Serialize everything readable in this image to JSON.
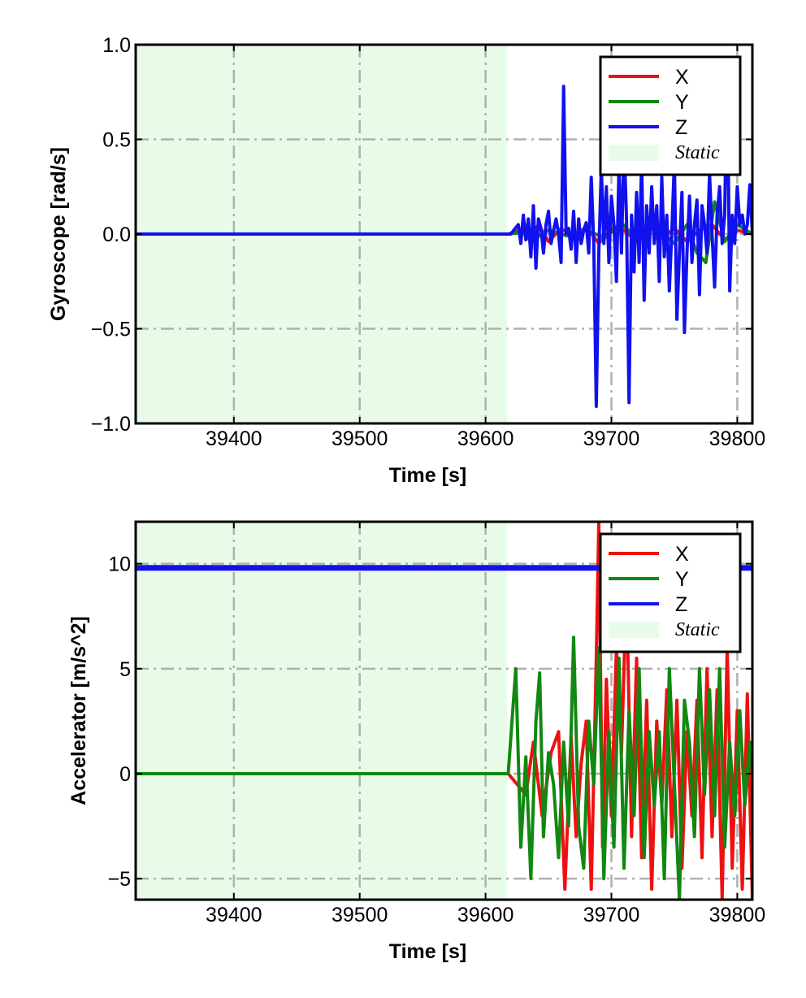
{
  "chart_data": [
    {
      "type": "line",
      "xlabel": "Time [s]",
      "ylabel": "Gyroscope [rad/s]",
      "xlim": [
        39322,
        39812
      ],
      "ylim": [
        -1.0,
        1.0
      ],
      "xticks": [
        39400,
        39500,
        39600,
        39700,
        39800
      ],
      "xtick_labels": [
        "39400",
        "39500",
        "39600",
        "39700",
        "39800"
      ],
      "yticks": [
        -1.0,
        -0.5,
        0.0,
        0.5,
        1.0
      ],
      "ytick_labels": [
        "−1.0",
        "−0.5",
        "0.0",
        "0.5",
        "1.0"
      ],
      "grid": true,
      "legend_position": "top-right",
      "static_region": {
        "label": "Static",
        "x_start": 39322,
        "x_end": 39617,
        "color": "#e8fbe8"
      },
      "series": [
        {
          "name": "X",
          "color": "#ee1111",
          "x": [
            39322,
            39618,
            39628,
            39635,
            39642,
            39650,
            39660,
            39670,
            39680,
            39690,
            39700,
            39710,
            39720,
            39730,
            39740,
            39750,
            39760,
            39770,
            39780,
            39790,
            39800,
            39812
          ],
          "y": [
            0.0,
            0.0,
            0.02,
            -0.03,
            0.05,
            -0.04,
            0.03,
            -0.02,
            0.04,
            -0.05,
            0.03,
            0.02,
            -0.04,
            0.05,
            -0.02,
            0.03,
            -0.04,
            0.02,
            0.05,
            -0.03,
            0.02,
            0.0
          ]
        },
        {
          "name": "Y",
          "color": "#118811",
          "x": [
            39322,
            39618,
            39630,
            39640,
            39650,
            39665,
            39680,
            39695,
            39708,
            39720,
            39735,
            39750,
            39760,
            39768,
            39775,
            39782,
            39790,
            39800,
            39812
          ],
          "y": [
            0.0,
            0.0,
            0.01,
            -0.02,
            0.02,
            -0.01,
            0.02,
            -0.02,
            0.06,
            -0.03,
            0.04,
            -0.05,
            0.05,
            -0.1,
            -0.15,
            0.17,
            -0.04,
            0.05,
            0.0
          ]
        },
        {
          "name": "Z",
          "color": "#1111ee",
          "x": [
            39322,
            39620,
            39626,
            39628,
            39630,
            39632,
            39634,
            39636,
            39638,
            39640,
            39642,
            39644,
            39646,
            39648,
            39650,
            39652,
            39654,
            39656,
            39658,
            39660,
            39662,
            39664,
            39666,
            39668,
            39670,
            39672,
            39674,
            39676,
            39678,
            39680,
            39682,
            39684,
            39686,
            39688,
            39690,
            39692,
            39694,
            39696,
            39698,
            39700,
            39702,
            39704,
            39706,
            39708,
            39710,
            39712,
            39714,
            39716,
            39718,
            39720,
            39722,
            39724,
            39726,
            39728,
            39730,
            39732,
            39734,
            39736,
            39738,
            39740,
            39742,
            39744,
            39746,
            39748,
            39750,
            39752,
            39754,
            39756,
            39758,
            39760,
            39762,
            39764,
            39766,
            39768,
            39770,
            39772,
            39774,
            39776,
            39778,
            39780,
            39782,
            39784,
            39786,
            39788,
            39790,
            39792,
            39794,
            39796,
            39798,
            39800,
            39802,
            39804,
            39806,
            39808,
            39810,
            39812
          ],
          "y": [
            0.0,
            0.0,
            0.05,
            -0.05,
            0.1,
            -0.03,
            0.08,
            -0.12,
            0.15,
            -0.18,
            0.08,
            0.03,
            -0.1,
            0.05,
            0.12,
            -0.05,
            0.02,
            0.08,
            0.0,
            -0.15,
            0.78,
            0.0,
            0.03,
            -0.08,
            0.12,
            -0.15,
            0.08,
            -0.05,
            0.02,
            0.06,
            -0.1,
            0.3,
            -0.05,
            -0.91,
            -0.1,
            0.35,
            -0.05,
            0.25,
            -0.15,
            0.2,
            0.05,
            -0.25,
            0.35,
            -0.1,
            0.5,
            0.08,
            -0.89,
            0.1,
            -0.2,
            0.22,
            -0.15,
            0.38,
            -0.35,
            0.15,
            -0.1,
            0.25,
            -0.05,
            0.15,
            -0.25,
            0.3,
            -0.12,
            0.1,
            -0.3,
            0.02,
            0.38,
            -0.45,
            -0.1,
            0.22,
            -0.52,
            -0.1,
            0.2,
            -0.15,
            0.05,
            0.18,
            -0.32,
            0.15,
            0.05,
            -0.1,
            0.32,
            0.0,
            -0.28,
            0.1,
            0.25,
            -0.05,
            0.1,
            0.9,
            -0.3,
            0.1,
            -0.05,
            0.25,
            0.05,
            0.1,
            0.0,
            0.05,
            0.26,
            0.0
          ]
        }
      ]
    },
    {
      "type": "line",
      "xlabel": "Time [s]",
      "ylabel": "Accelerator [m/s^2]",
      "xlim": [
        39322,
        39812
      ],
      "ylim": [
        -6,
        12
      ],
      "xticks": [
        39400,
        39500,
        39600,
        39700,
        39800
      ],
      "xtick_labels": [
        "39400",
        "39500",
        "39600",
        "39700",
        "39800"
      ],
      "yticks": [
        -5,
        0,
        5,
        10
      ],
      "ytick_labels": [
        "−5",
        "0",
        "5",
        "10"
      ],
      "grid": true,
      "legend_position": "top-right",
      "static_region": {
        "label": "Static",
        "x_start": 39322,
        "x_end": 39617,
        "color": "#e8fbe8"
      },
      "series": [
        {
          "name": "X",
          "color": "#ee1111",
          "x": [
            39322,
            39618,
            39625,
            39632,
            39638,
            39645,
            39652,
            39658,
            39663,
            39668,
            39672,
            39676,
            39680,
            39684,
            39688,
            39690,
            39693,
            39696,
            39700,
            39704,
            39708,
            39712,
            39716,
            39720,
            39724,
            39728,
            39732,
            39736,
            39740,
            39744,
            39748,
            39752,
            39756,
            39760,
            39764,
            39768,
            39772,
            39776,
            39780,
            39784,
            39788,
            39792,
            39796,
            39800,
            39804,
            39808,
            39812
          ],
          "y": [
            0.0,
            0.0,
            -0.5,
            -1.0,
            1.5,
            -2.0,
            1.0,
            2.0,
            -5.5,
            1.8,
            -3.0,
            0.5,
            2.5,
            -5.5,
            5.5,
            12.0,
            -3.5,
            4.5,
            -2.0,
            6.0,
            1.0,
            9.0,
            -3.0,
            5.5,
            -4.0,
            3.5,
            -5.5,
            2.5,
            -1.5,
            4.0,
            -3.0,
            3.5,
            -4.5,
            2.0,
            -2.0,
            3.5,
            -4.0,
            5.0,
            -3.0,
            4.0,
            -6.0,
            6.0,
            -4.5,
            3.0,
            -5.5,
            3.8,
            -6.0
          ]
        },
        {
          "name": "Y",
          "color": "#118811",
          "x": [
            39322,
            39618,
            39624,
            39628,
            39632,
            39636,
            39640,
            39643,
            39646,
            39650,
            39654,
            39658,
            39662,
            39666,
            39670,
            39674,
            39678,
            39682,
            39686,
            39690,
            39694,
            39698,
            39702,
            39706,
            39710,
            39714,
            39718,
            39722,
            39726,
            39730,
            39734,
            39738,
            39742,
            39746,
            39750,
            39754,
            39758,
            39762,
            39766,
            39770,
            39774,
            39778,
            39782,
            39786,
            39790,
            39794,
            39798,
            39802,
            39806,
            39810,
            39812
          ],
          "y": [
            0.0,
            0.0,
            5.0,
            -3.5,
            0.8,
            -5.0,
            2.5,
            4.8,
            -3.0,
            1.0,
            -0.5,
            -4.0,
            1.5,
            -2.5,
            6.5,
            -2.5,
            -4.5,
            2.5,
            -0.5,
            6.0,
            -5.0,
            2.0,
            -3.5,
            5.5,
            -4.5,
            3.0,
            -2.0,
            5.0,
            -4.0,
            2.0,
            -1.5,
            2.0,
            -5.0,
            5.0,
            -0.5,
            -6.0,
            3.5,
            1.5,
            -3.0,
            5.0,
            -1.0,
            4.0,
            -2.0,
            5.0,
            -3.5,
            1.5,
            -2.0,
            3.0,
            -1.5,
            1.5,
            0.0
          ]
        },
        {
          "name": "Z",
          "color": "#1111ee",
          "x": [
            39322,
            39812
          ],
          "y": [
            9.8,
            9.8
          ]
        }
      ]
    }
  ]
}
